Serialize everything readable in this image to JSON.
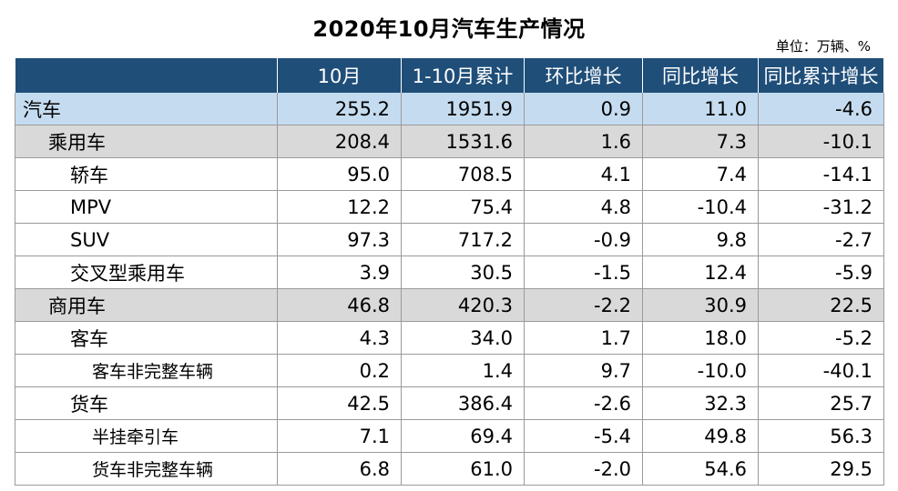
{
  "title": "2020年10月汽车生产情况",
  "unit": "单位：万辆、%",
  "columns": [
    "",
    "10月",
    "1-10月累计",
    "环比增长",
    "同比增长",
    "同比累计增长"
  ],
  "rows": [
    {
      "label": "汽车",
      "level": 0,
      "indent": 0,
      "values": [
        "255.2",
        "1951.9",
        "0.9",
        "11.0",
        "-4.6"
      ]
    },
    {
      "label": "乘用车",
      "level": 1,
      "indent": 1,
      "values": [
        "208.4",
        "1531.6",
        "1.6",
        "7.3",
        "-10.1"
      ]
    },
    {
      "label": "轿车",
      "level": 2,
      "indent": 2,
      "values": [
        "95.0",
        "708.5",
        "4.1",
        "7.4",
        "-14.1"
      ]
    },
    {
      "label": "MPV",
      "level": 2,
      "indent": 2,
      "values": [
        "12.2",
        "75.4",
        "4.8",
        "-10.4",
        "-31.2"
      ]
    },
    {
      "label": "SUV",
      "level": 2,
      "indent": 2,
      "values": [
        "97.3",
        "717.2",
        "-0.9",
        "9.8",
        "-2.7"
      ]
    },
    {
      "label": "交叉型乘用车",
      "level": 2,
      "indent": 2,
      "values": [
        "3.9",
        "30.5",
        "-1.5",
        "12.4",
        "-5.9"
      ]
    },
    {
      "label": "商用车",
      "level": 1,
      "indent": 1,
      "values": [
        "46.8",
        "420.3",
        "-2.2",
        "30.9",
        "22.5"
      ]
    },
    {
      "label": "客车",
      "level": 2,
      "indent": 2,
      "values": [
        "4.3",
        "34.0",
        "1.7",
        "18.0",
        "-5.2"
      ]
    },
    {
      "label": "客车非完整车辆",
      "level": 3,
      "indent": 3,
      "values": [
        "0.2",
        "1.4",
        "9.7",
        "-10.0",
        "-40.1"
      ]
    },
    {
      "label": "货车",
      "level": 2,
      "indent": 2,
      "values": [
        "42.5",
        "386.4",
        "-2.6",
        "32.3",
        "25.7"
      ]
    },
    {
      "label": "半挂牵引车",
      "level": 3,
      "indent": 3,
      "values": [
        "7.1",
        "69.4",
        "-5.4",
        "49.8",
        "56.3"
      ]
    },
    {
      "label": "货车非完整车辆",
      "level": 3,
      "indent": 3,
      "values": [
        "6.8",
        "61.0",
        "-2.0",
        "54.6",
        "29.5"
      ]
    }
  ]
}
